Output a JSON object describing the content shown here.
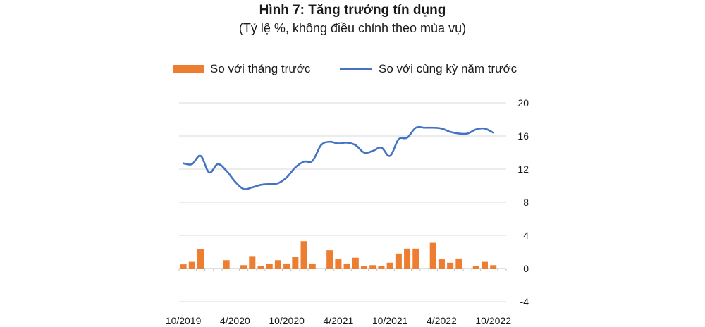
{
  "header": {
    "title": "Hình 7: Tăng trưởng tín dụng",
    "subtitle": "(Tỷ lệ %, không điều chỉnh theo mùa vụ)"
  },
  "colors": {
    "bar": "#ed7d31",
    "line": "#4472c4",
    "grid": "#d9d9d9"
  },
  "chart_data": {
    "type": "bar",
    "title": "Hình 7: Tăng trưởng tín dụng",
    "subtitle": "(Tỷ lệ %, không điều chỉnh theo mùa vụ)",
    "legend_position": "top",
    "grid": true,
    "y_axis_side": "right",
    "ylim": [
      -4,
      20
    ],
    "y_ticks": [
      "20",
      "16",
      "12",
      "8",
      "4",
      "0",
      "-4"
    ],
    "y_tick_values": [
      20,
      16,
      12,
      8,
      4,
      0,
      -4
    ],
    "x_tick_labels": [
      "10/2019",
      "4/2020",
      "10/2020",
      "4/2021",
      "10/2021",
      "4/2022",
      "10/2022"
    ],
    "x_tick_months": [
      "2019-10",
      "2020-04",
      "2020-10",
      "2021-04",
      "2021-10",
      "2022-04",
      "2022-10"
    ],
    "months": [
      "2019-10",
      "2019-11",
      "2019-12",
      "2020-01",
      "2020-02",
      "2020-03",
      "2020-04",
      "2020-05",
      "2020-06",
      "2020-07",
      "2020-08",
      "2020-09",
      "2020-10",
      "2020-11",
      "2020-12",
      "2021-01",
      "2021-02",
      "2021-03",
      "2021-04",
      "2021-05",
      "2021-06",
      "2021-07",
      "2021-08",
      "2021-09",
      "2021-10",
      "2021-11",
      "2021-12",
      "2022-01",
      "2022-02",
      "2022-03",
      "2022-04",
      "2022-05",
      "2022-06",
      "2022-07",
      "2022-08",
      "2022-09",
      "2022-10",
      "2022-11"
    ],
    "series": [
      {
        "name": "So với tháng trước",
        "kind": "bar",
        "values": [
          0.5,
          0.8,
          2.3,
          null,
          null,
          1.0,
          null,
          0.4,
          1.5,
          0.3,
          0.6,
          1.0,
          0.6,
          1.4,
          3.3,
          0.6,
          null,
          2.2,
          1.1,
          0.6,
          1.3,
          0.3,
          0.4,
          0.3,
          0.7,
          1.8,
          2.4,
          2.4,
          null,
          3.1,
          1.1,
          0.7,
          1.2,
          null,
          0.3,
          0.8,
          0.4,
          null
        ]
      },
      {
        "name": "So với cùng kỳ năm trước",
        "kind": "line",
        "values": [
          12.7,
          12.6,
          13.6,
          11.6,
          12.6,
          11.8,
          10.5,
          9.6,
          9.8,
          10.1,
          10.2,
          10.3,
          11.0,
          12.2,
          12.9,
          13.0,
          14.9,
          15.3,
          15.1,
          15.2,
          14.9,
          14.0,
          14.2,
          14.6,
          13.6,
          15.6,
          15.8,
          17.0,
          17.0,
          17.0,
          16.9,
          16.5,
          16.3,
          16.3,
          16.8,
          16.9,
          16.4,
          null
        ]
      }
    ]
  }
}
